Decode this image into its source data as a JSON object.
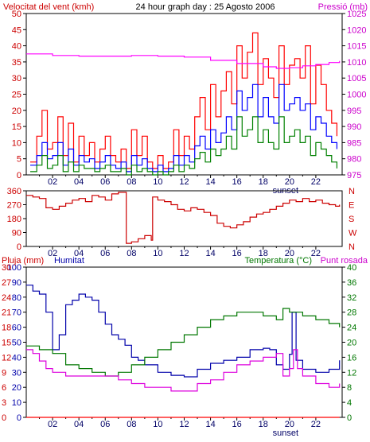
{
  "chart_data": [
    {
      "id": "wind",
      "type": "line",
      "title": "24 hour graph day : 25 Agosto 2006",
      "left_label": "Velocitat del vent (kmh)",
      "right_label": "Pressió (mb)",
      "x_ticks": [
        "02",
        "04",
        "06",
        "08",
        "10",
        "12",
        "14",
        "16",
        "18",
        "20",
        "22"
      ],
      "x_annotation": "sunset",
      "y_left": {
        "min": 0,
        "max": 50,
        "ticks": [
          "0",
          "5",
          "10",
          "15",
          "20",
          "25",
          "30",
          "35",
          "40",
          "45",
          "50"
        ]
      },
      "y_right": {
        "min": 975,
        "max": 1025,
        "ticks": [
          "975",
          "980",
          "985",
          "990",
          "995",
          "1000",
          "1005",
          "1010",
          "1015",
          "1020",
          "1025"
        ]
      },
      "series": [
        {
          "color": "#ff0000",
          "x": [
            0.3,
            0.8,
            1.2,
            1.6,
            2,
            2.4,
            2.8,
            3.2,
            3.6,
            4,
            4.4,
            4.8,
            5.2,
            5.6,
            6,
            6.4,
            6.8,
            7.2,
            7.6,
            8,
            8.4,
            8.8,
            9.2,
            9.6,
            10,
            10.4,
            10.8,
            11.2,
            11.6,
            12,
            12.4,
            12.8,
            13.2,
            13.6,
            14,
            14.4,
            14.8,
            15.2,
            15.6,
            16,
            16.4,
            16.8,
            17.2,
            17.6,
            18,
            18.4,
            18.8,
            19.2,
            19.6,
            20,
            20.4,
            20.8,
            21.2,
            21.6,
            22,
            22.4,
            22.8,
            23.2,
            23.6
          ],
          "y": [
            4,
            12,
            20,
            8,
            10,
            18,
            6,
            16,
            4,
            12,
            6,
            10,
            4,
            8,
            12,
            6,
            4,
            8,
            2,
            14,
            6,
            12,
            4,
            2,
            6,
            2,
            4,
            14,
            6,
            12,
            8,
            18,
            24,
            14,
            28,
            18,
            26,
            32,
            22,
            40,
            30,
            38,
            44,
            28,
            36,
            30,
            24,
            40,
            28,
            34,
            36,
            30,
            40,
            22,
            34,
            28,
            20,
            16,
            12
          ]
        },
        {
          "color": "#0000ff",
          "x": [
            0.3,
            0.8,
            1.2,
            1.6,
            2,
            2.4,
            2.8,
            3.2,
            3.6,
            4,
            4.4,
            4.8,
            5.2,
            5.6,
            6,
            6.4,
            6.8,
            7.2,
            7.6,
            8,
            8.4,
            8.8,
            9.2,
            9.6,
            10,
            10.4,
            10.8,
            11.2,
            11.6,
            12,
            12.4,
            12.8,
            13.2,
            13.6,
            14,
            14.4,
            14.8,
            15.2,
            15.6,
            16,
            16.4,
            16.8,
            17.2,
            17.6,
            18,
            18.4,
            18.8,
            19.2,
            19.6,
            20,
            20.4,
            20.8,
            21.2,
            21.6,
            22,
            22.4,
            22.8,
            23.2,
            23.6
          ],
          "y": [
            3,
            6,
            10,
            5,
            6,
            10,
            3,
            8,
            3,
            6,
            4,
            5,
            2,
            4,
            6,
            3,
            2,
            4,
            1,
            6,
            3,
            5,
            2,
            1,
            3,
            1,
            2,
            6,
            3,
            6,
            4,
            9,
            12,
            8,
            14,
            10,
            13,
            18,
            14,
            26,
            20,
            24,
            28,
            18,
            24,
            18,
            16,
            28,
            20,
            22,
            24,
            20,
            22,
            14,
            18,
            16,
            12,
            10,
            8
          ]
        },
        {
          "color": "#008000",
          "x": [
            0.3,
            0.8,
            1.2,
            1.6,
            2,
            2.4,
            2.8,
            3.2,
            3.6,
            4,
            4.4,
            4.8,
            5.2,
            5.6,
            6,
            6.4,
            6.8,
            7.2,
            7.6,
            8,
            8.4,
            8.8,
            9.2,
            9.6,
            10,
            10.4,
            10.8,
            11.2,
            11.6,
            12,
            12.4,
            12.8,
            13.2,
            13.6,
            14,
            14.4,
            14.8,
            15.2,
            15.6,
            16,
            16.4,
            16.8,
            17.2,
            17.6,
            18,
            18.4,
            18.8,
            19.2,
            19.6,
            20,
            20.4,
            20.8,
            21.2,
            21.6,
            22,
            22.4,
            22.8,
            23.2,
            23.6
          ],
          "y": [
            1,
            3,
            6,
            2,
            3,
            6,
            1,
            4,
            1,
            3,
            2,
            2,
            1,
            2,
            3,
            1,
            1,
            2,
            0,
            3,
            1,
            2,
            1,
            0,
            1,
            0,
            1,
            3,
            1,
            3,
            2,
            5,
            7,
            4,
            8,
            6,
            8,
            12,
            8,
            18,
            12,
            14,
            18,
            10,
            14,
            10,
            8,
            18,
            10,
            12,
            14,
            10,
            12,
            6,
            10,
            8,
            6,
            4,
            2
          ]
        },
        {
          "color": "#ff00ff",
          "axis": "right",
          "x": [
            0,
            2,
            4,
            6,
            8,
            10,
            12,
            14,
            16,
            18,
            19,
            20,
            21,
            22,
            23,
            23.8
          ],
          "y": [
            1012.5,
            1012,
            1011.8,
            1011.8,
            1012,
            1011.8,
            1011.5,
            1010.5,
            1009.5,
            1008.5,
            1008,
            1008.2,
            1008.8,
            1009.2,
            1009.8,
            1010.3
          ]
        }
      ]
    },
    {
      "id": "direction",
      "type": "line",
      "x_ticks": [
        "02",
        "04",
        "06",
        "08",
        "10",
        "12",
        "14",
        "16",
        "18",
        "20",
        "22"
      ],
      "y_left": {
        "min": 0,
        "max": 360,
        "ticks": [
          "0",
          "90",
          "180",
          "270",
          "360"
        ]
      },
      "y_right_labels": [
        "N",
        "W",
        "S",
        "E",
        "N"
      ],
      "series": [
        {
          "color": "#cc0000",
          "x": [
            0,
            0.5,
            1,
            1.5,
            2,
            2.5,
            3,
            3.5,
            4,
            4.5,
            5,
            5.5,
            6,
            6.5,
            7,
            7.5,
            7.6,
            8,
            8.5,
            9,
            9.5,
            9.6,
            10,
            10.5,
            11,
            11.5,
            12,
            12.5,
            13,
            13.5,
            14,
            14.5,
            15,
            15.5,
            16,
            16.5,
            17,
            17.5,
            18,
            18.5,
            19,
            19.5,
            20,
            20.5,
            21,
            21.5,
            22,
            22.5,
            23,
            23.5,
            23.8
          ],
          "y": [
            330,
            320,
            310,
            250,
            240,
            260,
            280,
            300,
            310,
            290,
            330,
            320,
            300,
            340,
            350,
            350,
            20,
            30,
            50,
            70,
            40,
            320,
            300,
            290,
            270,
            240,
            230,
            250,
            240,
            220,
            200,
            150,
            130,
            120,
            140,
            160,
            190,
            210,
            220,
            240,
            260,
            280,
            300,
            290,
            310,
            290,
            300,
            280,
            270,
            260,
            270
          ]
        }
      ]
    },
    {
      "id": "humidity",
      "type": "line",
      "left_label": "Pluja (mm)",
      "left_label2": "Humitat",
      "right_label": "Temperatura (°C)",
      "right_label2": "Punt rosada",
      "x_ticks": [
        "02",
        "04",
        "06",
        "08",
        "10",
        "12",
        "14",
        "16",
        "18",
        "20",
        "22"
      ],
      "x_annotation": "sunset",
      "y_left": {
        "min": 0,
        "max": 100,
        "ticks": [
          "0",
          "10",
          "20",
          "30",
          "40",
          "50",
          "60",
          "70",
          "80",
          "90",
          "100"
        ]
      },
      "y_left_rain_ticks": [
        "0",
        "3",
        "6",
        "9",
        "12",
        "15",
        "18",
        "21",
        "24",
        "27",
        "30"
      ],
      "y_right": {
        "min": 0,
        "max": 40,
        "ticks": [
          "0",
          "4",
          "8",
          "12",
          "16",
          "20",
          "24",
          "28",
          "32",
          "36",
          "40"
        ]
      },
      "series": [
        {
          "color": "#0000aa",
          "x": [
            0,
            0.5,
            1,
            1.5,
            2,
            2.5,
            3,
            3.5,
            4,
            4.5,
            5,
            5.5,
            6,
            6.5,
            7,
            7.5,
            8,
            8.5,
            9,
            10,
            11,
            12,
            13,
            14,
            15,
            16,
            17,
            18,
            18.5,
            19,
            19.5,
            20,
            20.2,
            20.5,
            21,
            22,
            23,
            23.8
          ],
          "y": [
            88,
            84,
            82,
            70,
            45,
            55,
            75,
            78,
            82,
            80,
            78,
            70,
            62,
            55,
            52,
            48,
            40,
            38,
            35,
            30,
            28,
            27,
            32,
            36,
            38,
            40,
            45,
            46,
            45,
            35,
            32,
            42,
            70,
            38,
            32,
            30,
            32,
            38
          ]
        },
        {
          "color": "#007700",
          "axis": "right",
          "x": [
            0,
            1,
            2,
            3,
            4,
            5,
            6,
            7,
            8,
            9,
            10,
            11,
            12,
            13,
            14,
            15,
            16,
            17,
            18,
            19,
            19.5,
            20,
            21,
            22,
            23,
            23.8
          ],
          "y": [
            19,
            18,
            17,
            14,
            13,
            12,
            11,
            12,
            14,
            16,
            18,
            20,
            22,
            24,
            26,
            27,
            28,
            28,
            27,
            26,
            29,
            28,
            27,
            26,
            25,
            24
          ]
        },
        {
          "color": "#dd00dd",
          "axis": "right",
          "x": [
            0,
            0.5,
            1,
            1.5,
            2,
            3,
            4,
            5,
            6,
            7,
            8,
            9,
            10,
            11,
            12,
            13,
            14,
            15,
            16,
            17,
            18,
            19,
            19.5,
            20,
            20.3,
            20.6,
            21,
            22,
            23,
            23.8
          ],
          "y": [
            18,
            17,
            15,
            13,
            12,
            11,
            11,
            11,
            11,
            10,
            9,
            8,
            8,
            7,
            7,
            9,
            10,
            12,
            14,
            15,
            16,
            17,
            11,
            13,
            18,
            13,
            11,
            9,
            8,
            9
          ]
        },
        {
          "color": "#ff0000",
          "x": [
            0,
            23.8
          ],
          "y": [
            0,
            0
          ]
        }
      ]
    }
  ]
}
